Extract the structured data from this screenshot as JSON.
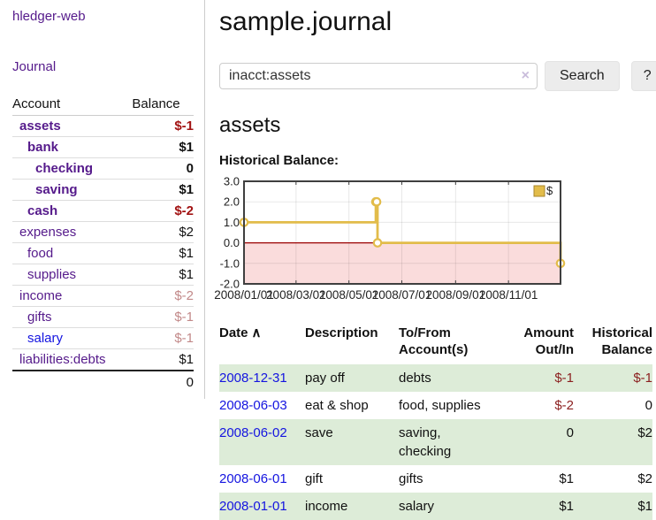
{
  "app": {
    "brand": "hledger-web"
  },
  "sidebar": {
    "journal_link": "Journal",
    "accounts_table": {
      "headers": {
        "account": "Account",
        "balance": "Balance"
      },
      "rows": [
        {
          "name": "assets",
          "indent": 1,
          "bold": true,
          "balance": "$-1",
          "balance_style": "neg-strong",
          "link_style": "purple"
        },
        {
          "name": "bank",
          "indent": 2,
          "bold": true,
          "balance": "$1",
          "balance_style": "normal",
          "link_style": "purple"
        },
        {
          "name": "checking",
          "indent": 3,
          "bold": true,
          "balance": "0",
          "balance_style": "normal",
          "link_style": "purple"
        },
        {
          "name": "saving",
          "indent": 3,
          "bold": true,
          "balance": "$1",
          "balance_style": "normal",
          "link_style": "purple"
        },
        {
          "name": "cash",
          "indent": 2,
          "bold": true,
          "balance": "$-2",
          "balance_style": "neg-strong",
          "link_style": "purple"
        },
        {
          "name": "expenses",
          "indent": 1,
          "bold": false,
          "balance": "$2",
          "balance_style": "normal",
          "link_style": "purple"
        },
        {
          "name": "food",
          "indent": 2,
          "bold": false,
          "balance": "$1",
          "balance_style": "normal",
          "link_style": "purple"
        },
        {
          "name": "supplies",
          "indent": 2,
          "bold": false,
          "balance": "$1",
          "balance_style": "normal",
          "link_style": "purple"
        },
        {
          "name": "income",
          "indent": 1,
          "bold": false,
          "balance": "$-2",
          "balance_style": "neg-dim",
          "link_style": "purple"
        },
        {
          "name": "gifts",
          "indent": 2,
          "bold": false,
          "balance": "$-1",
          "balance_style": "neg-dim",
          "link_style": "purple"
        },
        {
          "name": "salary",
          "indent": 2,
          "bold": false,
          "balance": "$-1",
          "balance_style": "neg-dim",
          "link_style": "blue"
        },
        {
          "name": "liabilities:debts",
          "indent": 1,
          "bold": false,
          "balance": "$1",
          "balance_style": "normal",
          "link_style": "purple"
        }
      ],
      "total": "0"
    }
  },
  "header": {
    "title": "sample.journal"
  },
  "search": {
    "value": "inacct:assets",
    "clear_icon": "×",
    "search_button": "Search",
    "help_button": "?"
  },
  "account_view": {
    "heading": "assets",
    "chart_title": "Historical Balance:"
  },
  "chart_data": {
    "type": "line",
    "step": true,
    "series": [
      {
        "name": "$",
        "color": "#e2bc4a",
        "points": [
          {
            "date": "2008-01-01",
            "value": 1
          },
          {
            "date": "2008-06-01",
            "value": 2
          },
          {
            "date": "2008-06-02",
            "value": 2
          },
          {
            "date": "2008-06-03",
            "value": 0
          },
          {
            "date": "2008-12-31",
            "value": -1
          }
        ]
      }
    ],
    "xlim": [
      "2008-01-01",
      "2008-12-31"
    ],
    "ylim": [
      -2,
      3
    ],
    "yticks": [
      {
        "value": 3,
        "label": "3.0"
      },
      {
        "value": 2,
        "label": "2.0"
      },
      {
        "value": 1,
        "label": "1.0"
      },
      {
        "value": 0,
        "label": "0.0"
      },
      {
        "value": -1,
        "label": "-1.0"
      },
      {
        "value": -2,
        "label": "-2.0"
      }
    ],
    "xticks": [
      {
        "date": "2008-01-01",
        "label": "2008/01/01"
      },
      {
        "date": "2008-03-01",
        "label": "2008/03/01"
      },
      {
        "date": "2008-05-01",
        "label": "2008/05/01"
      },
      {
        "date": "2008-07-01",
        "label": "2008/07/01"
      },
      {
        "date": "2008-09-01",
        "label": "2008/09/01"
      },
      {
        "date": "2008-11-01",
        "label": "2008/11/01"
      }
    ],
    "legend": {
      "label": "$",
      "position": "top-right"
    },
    "grid": true,
    "negative_region_color": "#fadcdc",
    "zero_line_color": "#990000",
    "marker_fill": "#ffffff"
  },
  "register": {
    "headers": {
      "date": "Date",
      "sort_indicator": "∧",
      "description": "Description",
      "accounts": "To/From Account(s)",
      "amount": "Amount Out/In",
      "balance": "Historical Balance"
    },
    "rows": [
      {
        "date": "2008-12-31",
        "description": "pay off",
        "accounts": "debts",
        "amount": "$-1",
        "amount_neg": true,
        "balance": "$-1",
        "balance_neg": true,
        "highlight": true
      },
      {
        "date": "2008-06-03",
        "description": "eat & shop",
        "accounts": "food, supplies",
        "amount": "$-2",
        "amount_neg": true,
        "balance": "0",
        "balance_neg": false,
        "highlight": false
      },
      {
        "date": "2008-06-02",
        "description": "save",
        "accounts": "saving, checking",
        "amount": "0",
        "amount_neg": false,
        "balance": "$2",
        "balance_neg": false,
        "highlight": true
      },
      {
        "date": "2008-06-01",
        "description": "gift",
        "accounts": "gifts",
        "amount": "$1",
        "amount_neg": false,
        "balance": "$2",
        "balance_neg": false,
        "highlight": false
      },
      {
        "date": "2008-01-01",
        "description": "income",
        "accounts": "salary",
        "amount": "$1",
        "amount_neg": false,
        "balance": "$1",
        "balance_neg": false,
        "highlight": true
      }
    ]
  },
  "colors": {
    "visited_link_purple": "#551a8b",
    "link_blue": "#1414e0",
    "negative_strong": "#a21313",
    "negative_dim": "#c28989",
    "negative_table": "#8b1f1f",
    "row_highlight_green": "#ddecd8",
    "chart_line_gold": "#e2bc4a",
    "negative_region_pink": "#fadcdc",
    "zero_line_dark_red": "#990000"
  }
}
